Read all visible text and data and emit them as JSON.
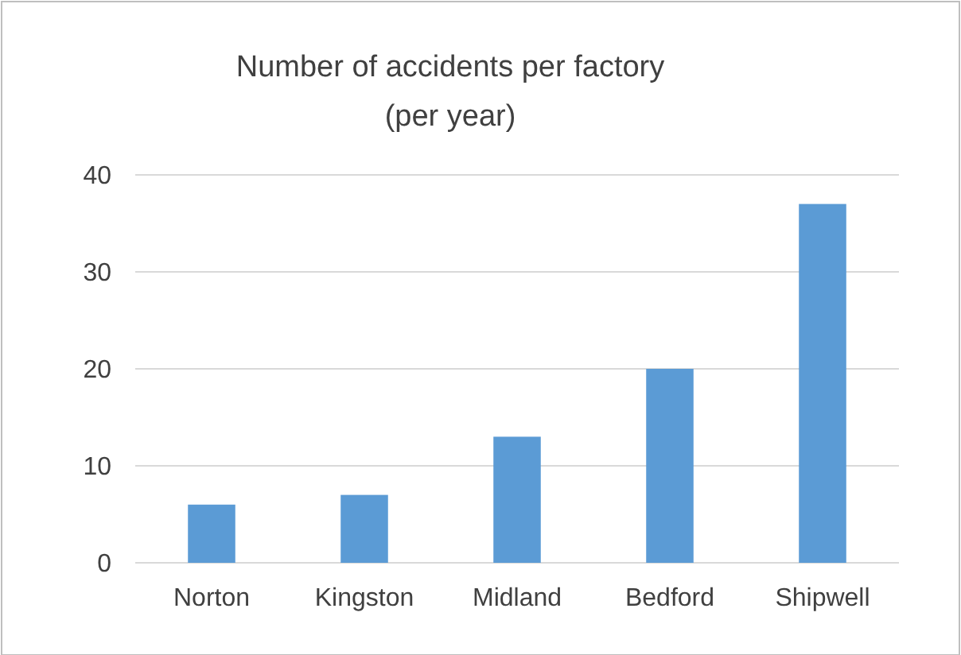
{
  "chart_data": {
    "type": "bar",
    "title": "Number of accidents per factory\n(per year)",
    "categories": [
      "Norton",
      "Kingston",
      "Midland",
      "Bedford",
      "Shipwell"
    ],
    "values": [
      6,
      7,
      13,
      20,
      37
    ],
    "color": "#5b9bd5",
    "ylim": [
      0,
      40
    ],
    "yticks": [
      0,
      10,
      20,
      30,
      40
    ],
    "grid": "y"
  }
}
